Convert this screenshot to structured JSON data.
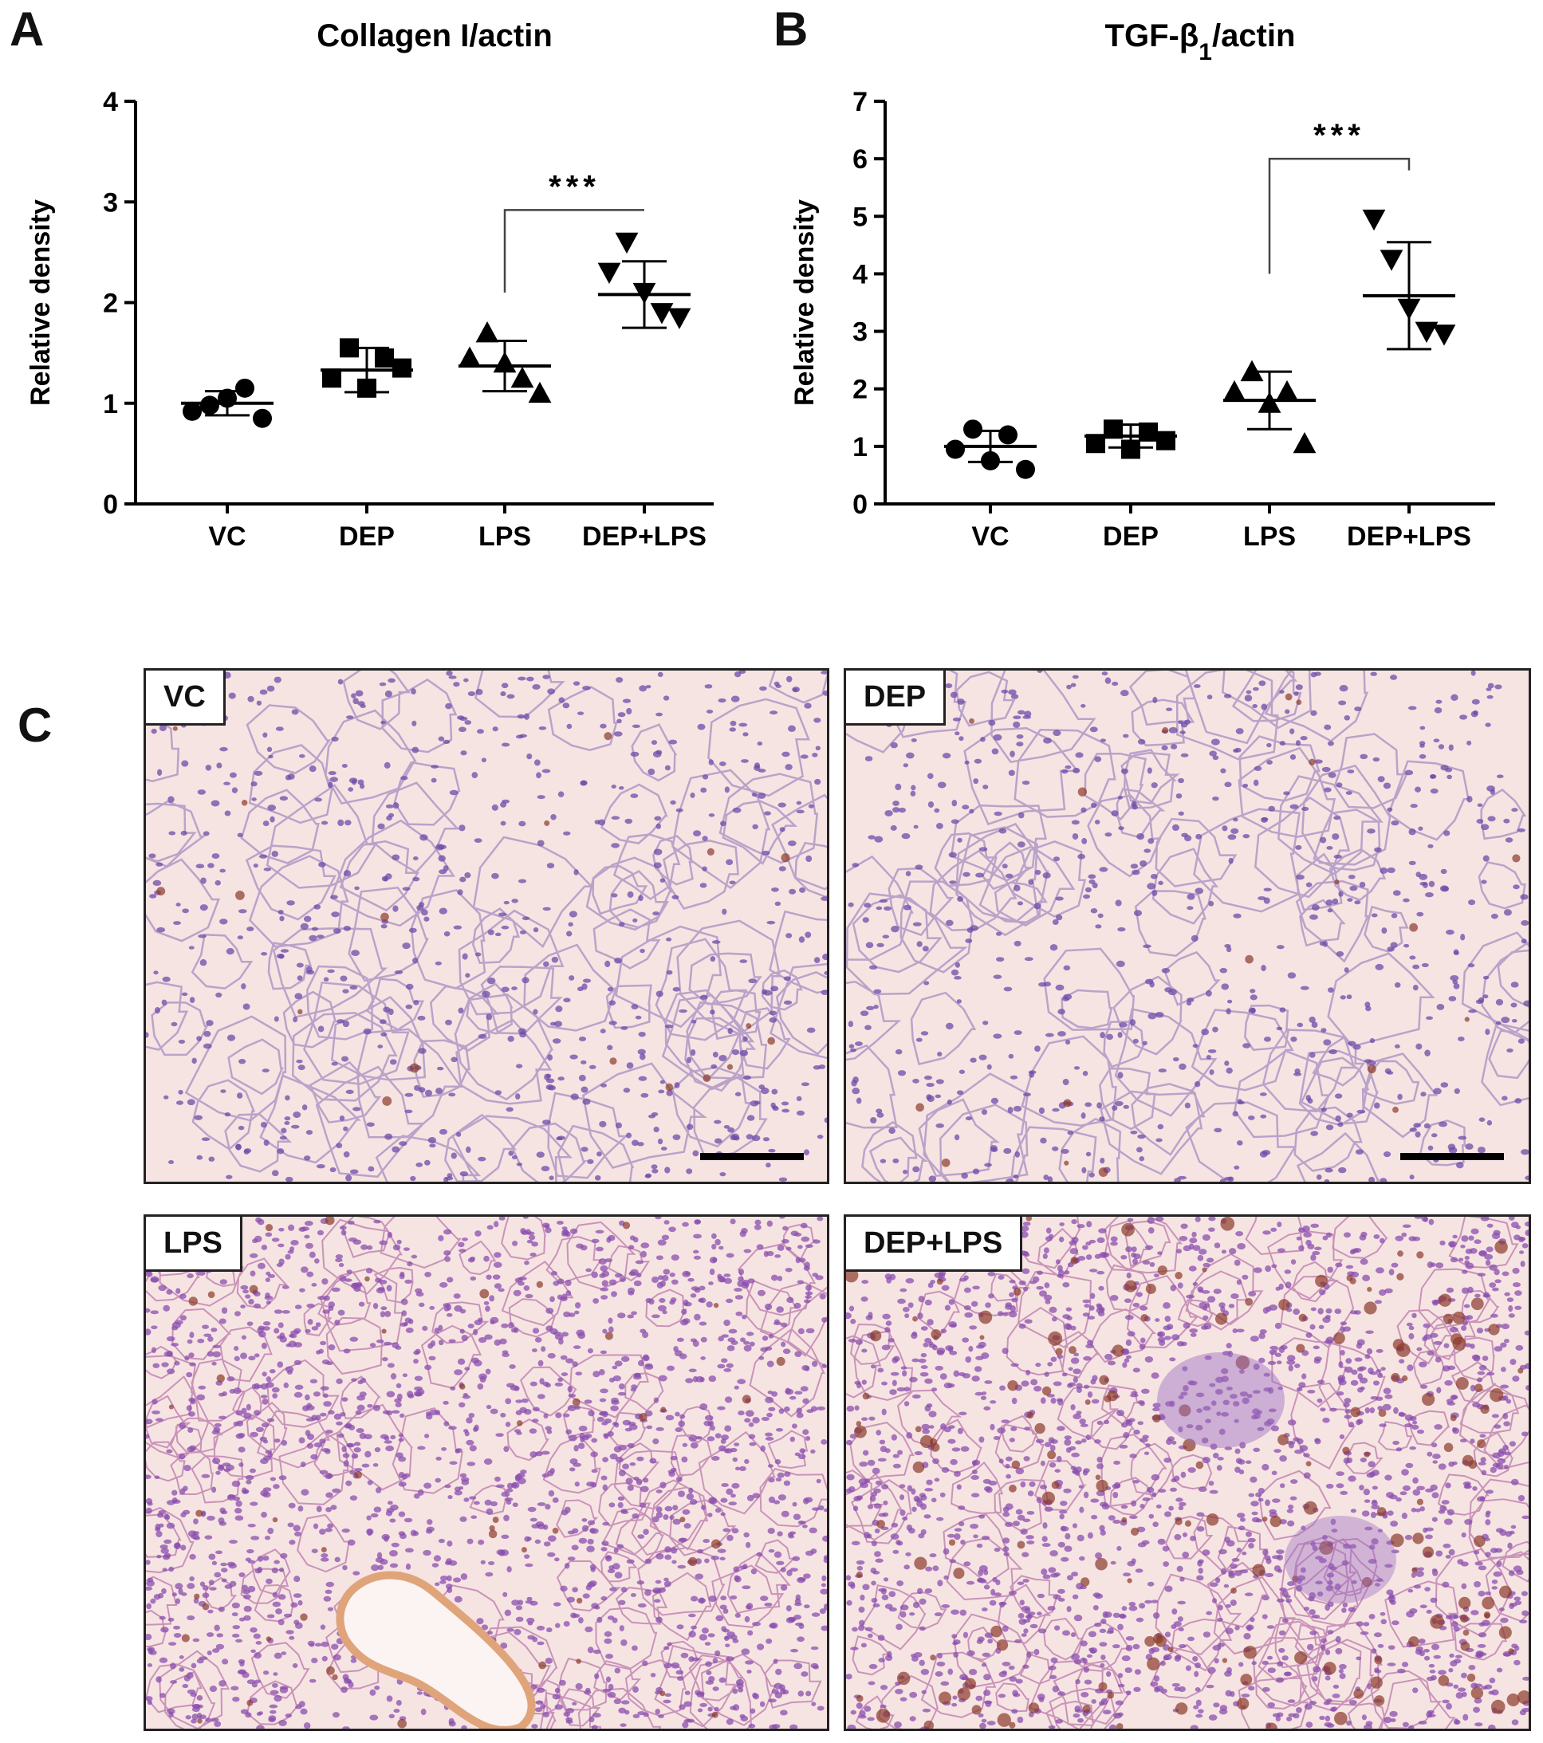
{
  "panels": {
    "a": "A",
    "b": "B",
    "c": "C"
  },
  "chart_data": [
    {
      "type": "scatter",
      "title": "Collagen I/actin",
      "xlabel": "",
      "ylabel": "Relative density",
      "ylim": [
        0,
        4
      ],
      "yticks": [
        0,
        1,
        2,
        3,
        4
      ],
      "categories": [
        "VC",
        "DEP",
        "LPS",
        "DEP+LPS"
      ],
      "markers": [
        "circle",
        "square",
        "triangle-up",
        "triangle-down"
      ],
      "points": [
        [
          0.92,
          0.98,
          1.05,
          1.15,
          0.85
        ],
        [
          1.25,
          1.55,
          1.15,
          1.45,
          1.35
        ],
        [
          1.45,
          1.7,
          1.4,
          1.25,
          1.1
        ],
        [
          2.3,
          2.6,
          2.1,
          1.9,
          1.85
        ]
      ],
      "mean": [
        1.0,
        1.33,
        1.37,
        2.08
      ],
      "sd": [
        0.12,
        0.22,
        0.25,
        0.33
      ],
      "significance": [
        {
          "from": 2,
          "to": 3,
          "label": "***"
        }
      ],
      "grid": false
    },
    {
      "type": "scatter",
      "title": "TGF-β",
      "title_sub": "1",
      "title_tail": "/actin",
      "xlabel": "",
      "ylabel": "Relative density",
      "ylim": [
        0,
        7
      ],
      "yticks": [
        0,
        1,
        2,
        3,
        4,
        5,
        6,
        7
      ],
      "categories": [
        "VC",
        "DEP",
        "LPS",
        "DEP+LPS"
      ],
      "markers": [
        "circle",
        "square",
        "triangle-up",
        "triangle-down"
      ],
      "points": [
        [
          0.95,
          1.3,
          0.75,
          1.2,
          0.6
        ],
        [
          1.05,
          1.3,
          0.95,
          1.25,
          1.1
        ],
        [
          1.95,
          2.3,
          1.75,
          1.95,
          1.05
        ],
        [
          4.95,
          4.25,
          3.4,
          3.0,
          2.95
        ]
      ],
      "mean": [
        1.0,
        1.18,
        1.8,
        3.62
      ],
      "sd": [
        0.27,
        0.2,
        0.5,
        0.93
      ],
      "significance": [
        {
          "from": 2,
          "to": 3,
          "label": "***"
        }
      ],
      "grid": false
    }
  ],
  "micrographs": [
    {
      "label": "VC",
      "condition": "vc"
    },
    {
      "label": "DEP",
      "condition": "dep"
    },
    {
      "label": "LPS",
      "condition": "lps"
    },
    {
      "label": "DEP+LPS",
      "condition": "deplps"
    }
  ],
  "colors": {
    "marker": "#000000",
    "tissue_bg": "#f6e4e3",
    "nuclei": "#6f4aa8",
    "stain": "#8b3a2a"
  }
}
